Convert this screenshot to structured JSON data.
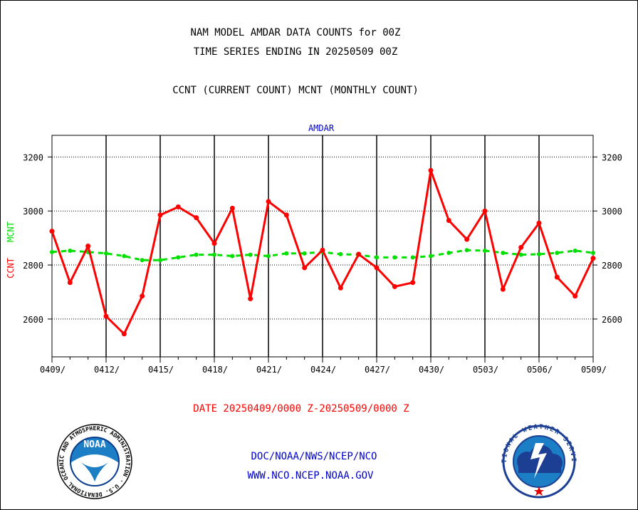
{
  "header": {
    "title1": "NAM MODEL AMDAR DATA COUNTS for 00Z",
    "title2": "TIME SERIES ENDING IN 20250509 00Z",
    "subtitle": "CCNT (CURRENT COUNT) MCNT (MONTHLY COUNT)"
  },
  "footer": {
    "date_range": "DATE 20250409/0000 Z-20250509/0000 Z",
    "org": "DOC/NOAA/NWS/NCEP/NCO",
    "url": "WWW.NCO.NCEP.NOAA.GOV"
  },
  "logos": {
    "noaa_text": "NOAA",
    "noaa_ring": "NATIONAL OCEANIC AND ATMOSPHERIC ADMINISTRATION · U.S. DEPARTMENT OF COMMERCE ·",
    "nws_ring": "NATIONAL WEATHER SERVICE"
  },
  "colors": {
    "current": "#ff0000",
    "monthly": "#00e000",
    "plot_label": "#0000cc",
    "footer_text": "#0000cc",
    "date_text": "#ff0000"
  },
  "chart_data": {
    "type": "line",
    "plot_label": "AMDAR",
    "ylabel_current": "CCNT",
    "ylabel_monthly": "MCNT",
    "ylim": [
      2460,
      3280
    ],
    "yticks": [
      2600,
      2800,
      3000,
      3200
    ],
    "xlim": [
      0,
      30
    ],
    "xtick_labels": [
      "0409/",
      "0412/",
      "0415/",
      "0418/",
      "0421/",
      "0424/",
      "0427/",
      "0430/",
      "0503/",
      "0506/",
      "0509/"
    ],
    "xtick_days": [
      0,
      3,
      6,
      9,
      12,
      15,
      18,
      21,
      24,
      27,
      30
    ],
    "grid": true,
    "series": [
      {
        "name": "CCNT",
        "style": "solid",
        "values": [
          2925,
          2735,
          2870,
          2610,
          2545,
          2685,
          2985,
          3015,
          2975,
          2880,
          3010,
          2675,
          3035,
          2985,
          2790,
          2855,
          2715,
          2840,
          2790,
          2720,
          2735,
          3150,
          2965,
          2895,
          3000,
          2710,
          2865,
          2955,
          2755,
          2685,
          2825
        ]
      },
      {
        "name": "MCNT",
        "style": "dashed",
        "values": [
          2848,
          2853,
          2848,
          2843,
          2833,
          2818,
          2818,
          2828,
          2838,
          2838,
          2833,
          2838,
          2833,
          2843,
          2843,
          2848,
          2840,
          2838,
          2828,
          2828,
          2828,
          2833,
          2845,
          2855,
          2853,
          2845,
          2838,
          2840,
          2845,
          2853,
          2845
        ]
      }
    ]
  }
}
